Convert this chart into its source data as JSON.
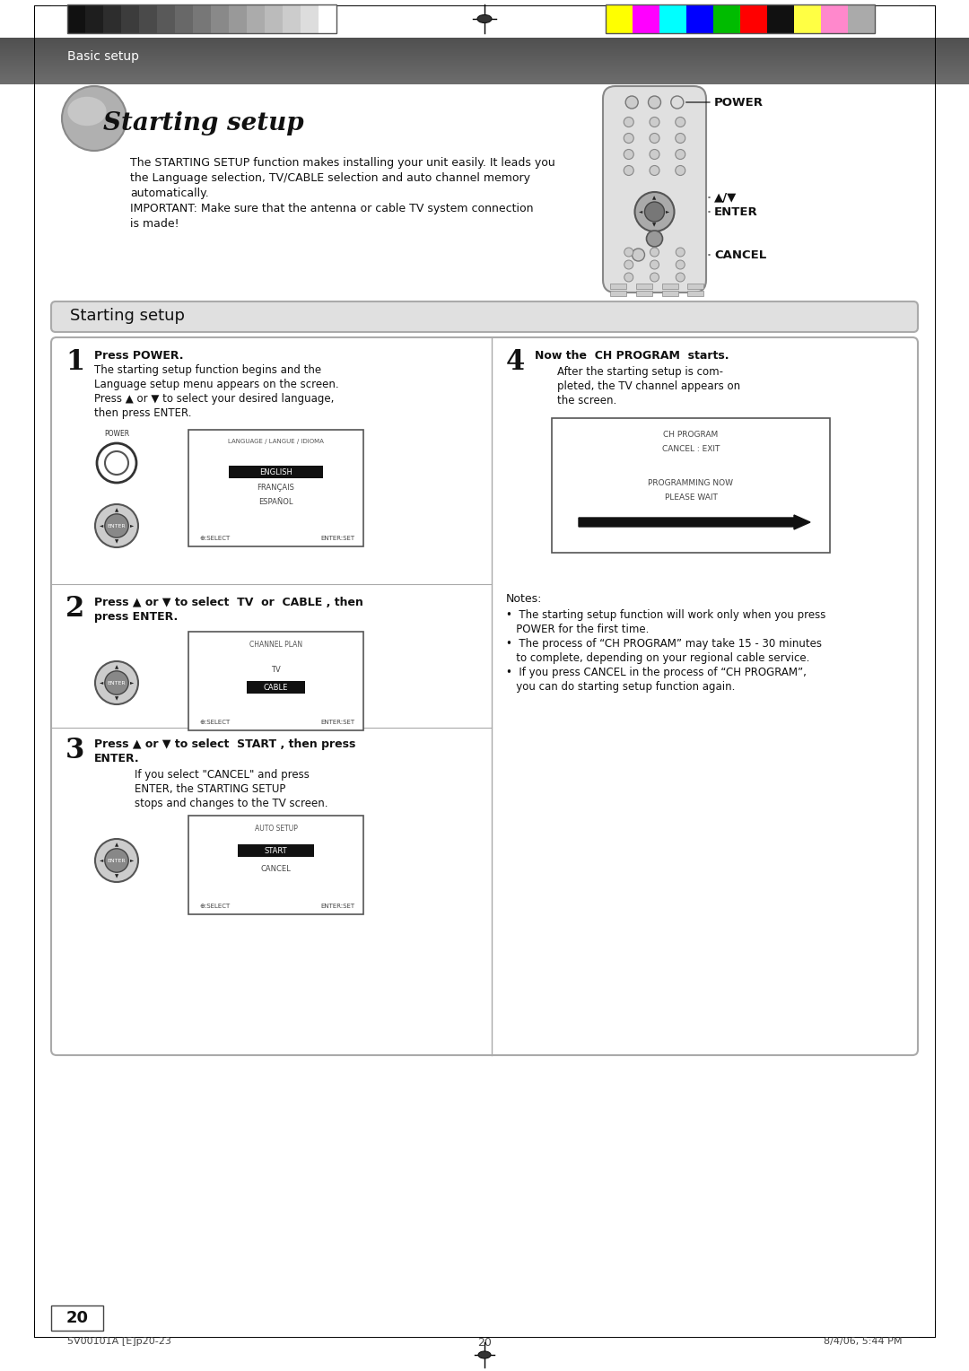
{
  "page_width": 10.8,
  "page_height": 15.28,
  "bg_color": "#ffffff",
  "header_text": "Basic setup",
  "power_label": "POWER",
  "arrow_label": "▲/▼",
  "enter_label": "ENTER",
  "cancel_label": "CANCEL",
  "section_title": "Starting setup",
  "page_num": "20",
  "footer_left": "5V00101A [E]p20-23",
  "footer_center": "20",
  "footer_right": "8/4/06, 5:44 PM",
  "gray_bar_colors": [
    "#111111",
    "#1e1e1e",
    "#2d2d2d",
    "#3c3c3c",
    "#4a4a4a",
    "#595959",
    "#686868",
    "#777777",
    "#898989",
    "#999999",
    "#ababab",
    "#bbbbbb",
    "#cccccc",
    "#dddddd",
    "#ffffff"
  ],
  "color_bar_colors": [
    "#ffff00",
    "#ff00ff",
    "#00ffff",
    "#0000ff",
    "#00bb00",
    "#ff0000",
    "#111111",
    "#ffff44",
    "#ff88cc",
    "#aaaaaa"
  ]
}
